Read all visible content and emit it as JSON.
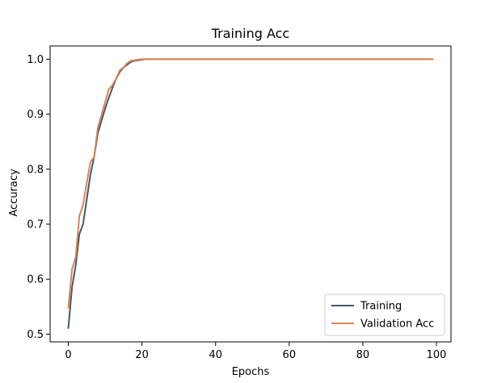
{
  "chart_data": {
    "type": "line",
    "title": "Training Acc",
    "xlabel": "Epochs",
    "ylabel": "Accuracy",
    "xlim": [
      -4.95,
      103.95
    ],
    "ylim": [
      0.486,
      1.024
    ],
    "x_ticks": [
      0,
      20,
      40,
      60,
      80,
      100
    ],
    "y_ticks": [
      0.5,
      0.6,
      0.7,
      0.8,
      0.9,
      1.0
    ],
    "x_tick_labels": [
      "0",
      "20",
      "40",
      "60",
      "80",
      "100"
    ],
    "y_tick_labels": [
      "0.5",
      "0.6",
      "0.7",
      "0.8",
      "0.9",
      "1.0"
    ],
    "grid": false,
    "legend_position": "lower-right",
    "series": [
      {
        "name": "Training",
        "color": "#3f5a70",
        "x": [
          0,
          1,
          2,
          3,
          4,
          5,
          6,
          7,
          8,
          9,
          10,
          11,
          12,
          13,
          14,
          15,
          16,
          17,
          18,
          19,
          20,
          21,
          22,
          23,
          24,
          25,
          30,
          35,
          40,
          45,
          50,
          55,
          60,
          65,
          70,
          75,
          80,
          85,
          90,
          95,
          99
        ],
        "y": [
          0.511,
          0.585,
          0.625,
          0.682,
          0.7,
          0.745,
          0.79,
          0.822,
          0.865,
          0.888,
          0.91,
          0.93,
          0.948,
          0.965,
          0.977,
          0.985,
          0.99,
          0.995,
          0.997,
          0.998,
          0.999,
          1.0,
          1.0,
          1.0,
          1.0,
          1.0,
          1.0,
          1.0,
          1.0,
          1.0,
          1.0,
          1.0,
          1.0,
          1.0,
          1.0,
          1.0,
          1.0,
          1.0,
          1.0,
          1.0,
          1.0
        ]
      },
      {
        "name": "Validation Acc",
        "color": "#dd8452",
        "x": [
          0,
          1,
          2,
          3,
          4,
          5,
          6,
          7,
          8,
          9,
          10,
          11,
          12,
          13,
          14,
          15,
          16,
          17,
          18,
          19,
          20,
          21,
          22,
          23,
          24,
          25,
          30,
          35,
          40,
          45,
          50,
          55,
          60,
          65,
          70,
          75,
          80,
          85,
          90,
          95,
          99
        ],
        "y": [
          0.548,
          0.618,
          0.64,
          0.715,
          0.735,
          0.775,
          0.813,
          0.822,
          0.875,
          0.898,
          0.922,
          0.945,
          0.953,
          0.965,
          0.98,
          0.985,
          0.993,
          0.997,
          0.998,
          0.999,
          1.0,
          1.0,
          1.0,
          1.0,
          1.0,
          1.0,
          1.0,
          1.0,
          1.0,
          1.0,
          1.0,
          1.0,
          1.0,
          1.0,
          1.0,
          1.0,
          1.0,
          1.0,
          1.0,
          1.0,
          1.0
        ]
      }
    ]
  }
}
